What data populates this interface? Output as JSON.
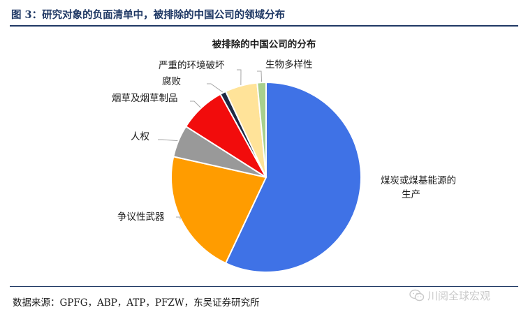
{
  "figure": {
    "title": "图 3：研究对象的负面清单中，被排除的中国公司的领域分布",
    "source": "数据来源：GPFG，ABP，ATP，PFZW，东吴证券研究所"
  },
  "watermark": {
    "text": "川阅全球宏观",
    "icon": "wechat-icon",
    "color": "#c9c9c9"
  },
  "chart_data": {
    "type": "pie",
    "title": "被排除的中国公司的分布",
    "slices": [
      {
        "label": "煤炭或煤基能源的生产",
        "value": 57.0,
        "color": "#3f72e6"
      },
      {
        "label": "争议性武器",
        "value": 21.5,
        "color": "#ff9c00"
      },
      {
        "label": "人权",
        "value": 5.5,
        "color": "#999999"
      },
      {
        "label": "烟草及烟草制品",
        "value": 8.0,
        "color": "#f20c0c"
      },
      {
        "label": "腐败",
        "value": 1.0,
        "color": "#1f2a44"
      },
      {
        "label": "严重的环境破坏",
        "value": 5.5,
        "color": "#ffe399"
      },
      {
        "label": "生物多样性",
        "value": 1.5,
        "color": "#a8d08d"
      }
    ],
    "start_angle_deg": 0,
    "direction": "clockwise",
    "legend": "none"
  }
}
